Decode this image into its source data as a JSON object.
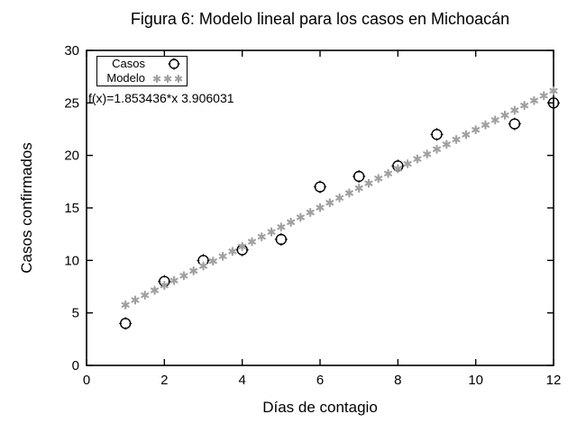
{
  "chart_data": {
    "type": "scatter",
    "title": "Figura 6: Modelo lineal para los casos en Michoacán",
    "xlabel": "Días de contagio",
    "ylabel": "Casos confirmados",
    "xlim": [
      0,
      12
    ],
    "ylim": [
      0,
      30
    ],
    "xticks": [
      0,
      2,
      4,
      6,
      8,
      10,
      12
    ],
    "yticks": [
      0,
      5,
      10,
      15,
      20,
      25,
      30
    ],
    "grid": false,
    "legend_position": "top-left-inside",
    "annotation": "f(x)=1.853436*x 3.906031",
    "series": [
      {
        "name": "Casos",
        "type": "points",
        "marker": "open-circle",
        "color": "#000000",
        "points": [
          [
            1,
            4
          ],
          [
            2,
            8
          ],
          [
            3,
            10
          ],
          [
            4,
            11
          ],
          [
            5,
            12
          ],
          [
            6,
            17
          ],
          [
            7,
            18
          ],
          [
            8,
            19
          ],
          [
            9,
            22
          ],
          [
            11,
            23
          ],
          [
            12,
            25
          ]
        ]
      },
      {
        "name": "Modelo",
        "type": "function-points",
        "marker": "asterisk",
        "color": "#a0a0a0",
        "slope": 1.853436,
        "intercept": 3.906031,
        "x_start": 1,
        "x_end": 12,
        "x_step": 0.25
      }
    ]
  },
  "colors": {
    "background": "#ffffff",
    "axis": "#000000",
    "text": "#000000",
    "model_marker": "#a0a0a0",
    "data_marker": "#000000"
  }
}
